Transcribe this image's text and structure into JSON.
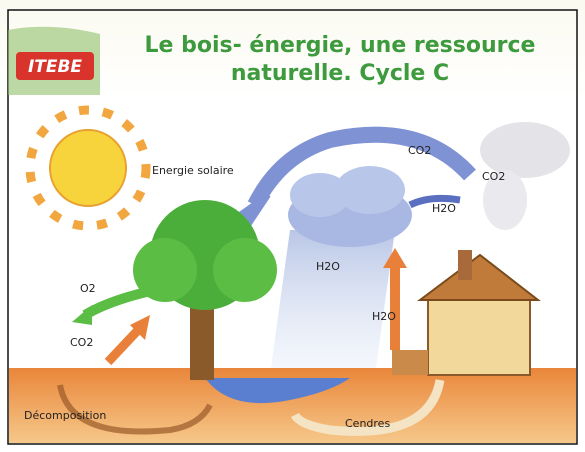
{
  "header": {
    "logo": "ITEBE",
    "title_lines": [
      "Le bois- énergie, une ressource",
      "naturelle. Cycle C"
    ]
  },
  "labels": {
    "energie_solaire": "Energie solaire",
    "co2_top": "CO2",
    "co2_smoke": "CO2",
    "h2o_cloud": "H2O",
    "h2o_rain": "H2O",
    "h2o_up": "H2O",
    "o2": "O2",
    "co2_left": "CO2",
    "decomposition": "Décomposition",
    "cendres": "Cendres"
  }
}
